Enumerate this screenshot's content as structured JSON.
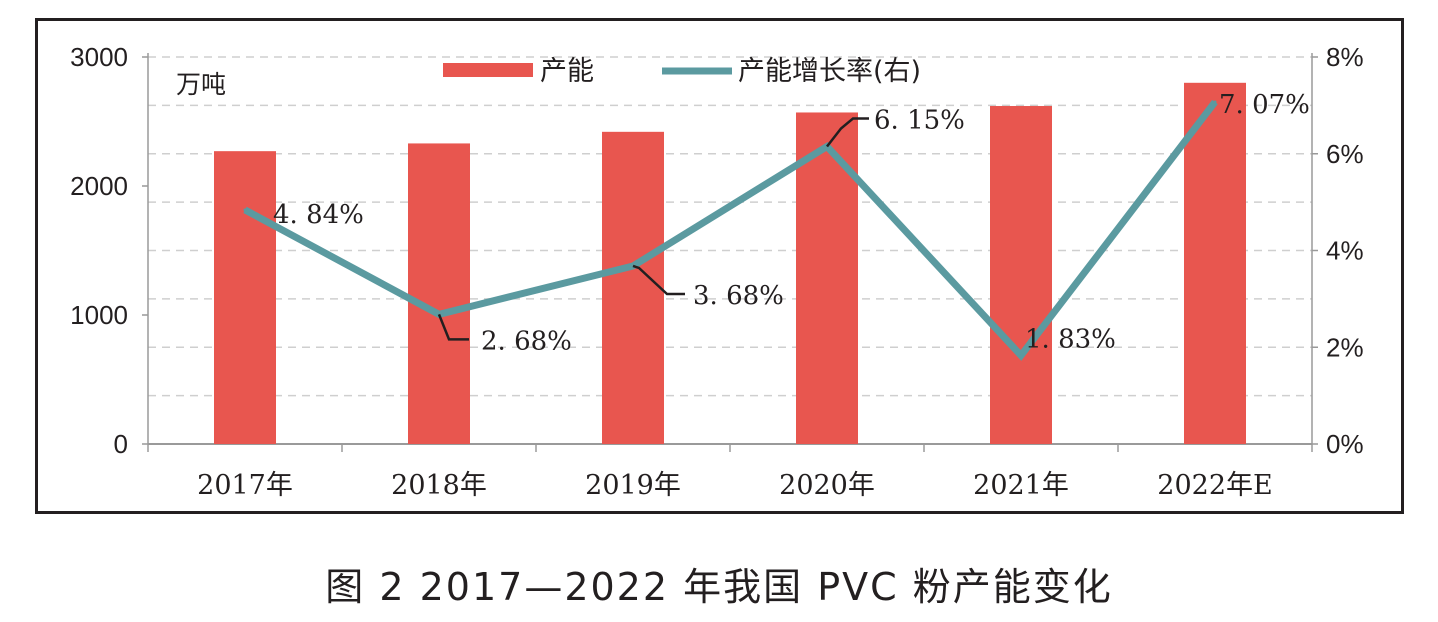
{
  "chart_data": {
    "type": "bar",
    "categories": [
      "2017年",
      "2018年",
      "2019年",
      "2020年",
      "2021年",
      "2022年E"
    ],
    "series": [
      {
        "name": "产能",
        "kind": "bar",
        "axis": "left",
        "color": "#e8564f",
        "values": [
          2270,
          2330,
          2420,
          2570,
          2620,
          2800
        ]
      },
      {
        "name": "产能增长率(右)",
        "kind": "line",
        "axis": "right",
        "color": "#5b9aa0",
        "values": [
          4.84,
          2.68,
          3.68,
          6.15,
          1.83,
          7.07
        ],
        "labels": [
          "4. 84%",
          "2. 68%",
          "3. 68%",
          "6. 15%",
          "1. 83%",
          "7. 07%"
        ]
      }
    ],
    "y_left": {
      "unit": "万吨",
      "lim": [
        0,
        3000
      ],
      "ticks": [
        "0",
        "1000",
        "2000",
        "3000"
      ],
      "tick_values": [
        0,
        1000,
        2000,
        3000
      ]
    },
    "y_right": {
      "lim": [
        0,
        8
      ],
      "ticks": [
        "0%",
        "2%",
        "4%",
        "6%",
        "8%"
      ],
      "tick_values": [
        0,
        2,
        4,
        6,
        8
      ]
    },
    "grid": "dashed",
    "legend": "top-center"
  },
  "caption": "图 2  2017—2022 年我国 PVC 粉产能变化"
}
